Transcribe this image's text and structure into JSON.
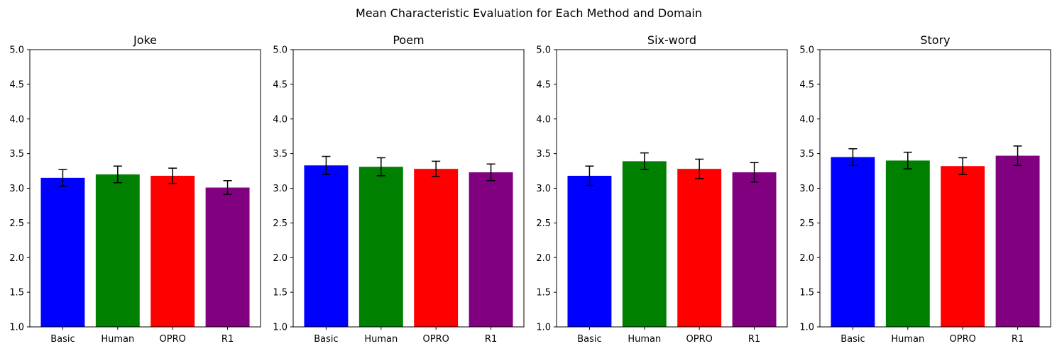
{
  "suptitle": "Mean Characteristic Evaluation for Each Method and Domain",
  "chart_data": [
    {
      "type": "bar",
      "title": "Joke",
      "categories": [
        "Basic",
        "Human",
        "OPRO",
        "R1"
      ],
      "values": [
        3.15,
        3.2,
        3.18,
        3.01
      ],
      "errors": [
        0.12,
        0.12,
        0.11,
        0.1
      ],
      "colors": [
        "#0000ff",
        "#008000",
        "#ff0000",
        "#800080"
      ],
      "ylim": [
        1.0,
        5.0
      ],
      "yticks": [
        "1.0",
        "1.5",
        "2.0",
        "2.5",
        "3.0",
        "3.5",
        "4.0",
        "4.5",
        "5.0"
      ],
      "grid": false
    },
    {
      "type": "bar",
      "title": "Poem",
      "categories": [
        "Basic",
        "Human",
        "OPRO",
        "R1"
      ],
      "values": [
        3.33,
        3.31,
        3.28,
        3.23
      ],
      "errors": [
        0.13,
        0.13,
        0.11,
        0.12
      ],
      "colors": [
        "#0000ff",
        "#008000",
        "#ff0000",
        "#800080"
      ],
      "ylim": [
        1.0,
        5.0
      ],
      "yticks": [
        "1.0",
        "1.5",
        "2.0",
        "2.5",
        "3.0",
        "3.5",
        "4.0",
        "4.5",
        "5.0"
      ],
      "grid": false
    },
    {
      "type": "bar",
      "title": "Six-word",
      "categories": [
        "Basic",
        "Human",
        "OPRO",
        "R1"
      ],
      "values": [
        3.18,
        3.39,
        3.28,
        3.23
      ],
      "errors": [
        0.14,
        0.12,
        0.14,
        0.14
      ],
      "colors": [
        "#0000ff",
        "#008000",
        "#ff0000",
        "#800080"
      ],
      "ylim": [
        1.0,
        5.0
      ],
      "yticks": [
        "1.0",
        "1.5",
        "2.0",
        "2.5",
        "3.0",
        "3.5",
        "4.0",
        "4.5",
        "5.0"
      ],
      "grid": false
    },
    {
      "type": "bar",
      "title": "Story",
      "categories": [
        "Basic",
        "Human",
        "OPRO",
        "R1"
      ],
      "values": [
        3.45,
        3.4,
        3.32,
        3.47
      ],
      "errors": [
        0.12,
        0.12,
        0.12,
        0.14
      ],
      "colors": [
        "#0000ff",
        "#008000",
        "#ff0000",
        "#800080"
      ],
      "ylim": [
        1.0,
        5.0
      ],
      "yticks": [
        "1.0",
        "1.5",
        "2.0",
        "2.5",
        "3.0",
        "3.5",
        "4.0",
        "4.5",
        "5.0"
      ],
      "grid": false
    }
  ]
}
